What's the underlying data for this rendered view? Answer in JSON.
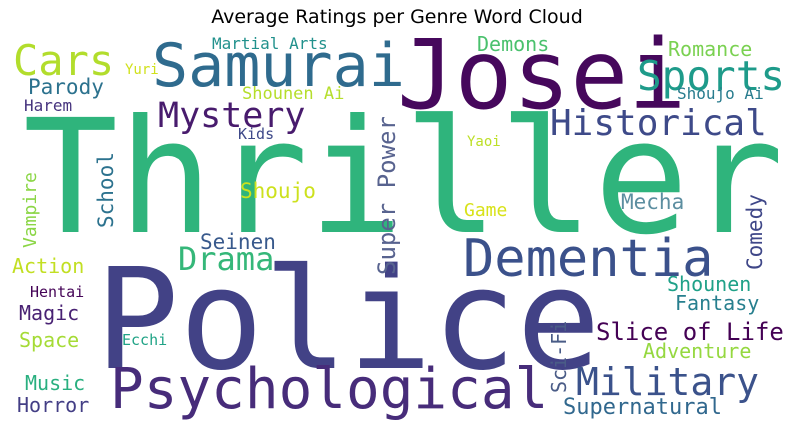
{
  "chart_data": {
    "type": "wordcloud",
    "title": "Average Ratings per Genre Word Cloud",
    "words": [
      {
        "text": "Thriller",
        "color": "#2fb47c"
      },
      {
        "text": "Police",
        "color": "#424286"
      },
      {
        "text": "Josei",
        "color": "#46085c"
      },
      {
        "text": "Samurai",
        "color": "#2f6b8e"
      },
      {
        "text": "Psychological",
        "color": "#472c7a"
      },
      {
        "text": "Dementia",
        "color": "#3b518b"
      },
      {
        "text": "Cars",
        "color": "#b2dd2c"
      },
      {
        "text": "Sports",
        "color": "#1e9b8a"
      },
      {
        "text": "Historical",
        "color": "#3e4a89"
      },
      {
        "text": "Mystery",
        "color": "#481b6d"
      },
      {
        "text": "Military",
        "color": "#3b528b"
      },
      {
        "text": "Drama",
        "color": "#35b779"
      },
      {
        "text": "Super Power",
        "color": "#58638f"
      },
      {
        "text": "Slice of Life",
        "color": "#440154"
      },
      {
        "text": "Supernatural",
        "color": "#31688e"
      },
      {
        "text": "Sci-Fi",
        "color": "#4a5c87"
      },
      {
        "text": "Comedy",
        "color": "#3f4788"
      },
      {
        "text": "Shoujo",
        "color": "#cde11d"
      },
      {
        "text": "School",
        "color": "#2c728e"
      },
      {
        "text": "Romance",
        "color": "#7ad151"
      },
      {
        "text": "Demons",
        "color": "#4ac16d"
      },
      {
        "text": "Mecha",
        "color": "#5c8ea0"
      },
      {
        "text": "Parody",
        "color": "#2c728e"
      },
      {
        "text": "Seinen",
        "color": "#38598c"
      },
      {
        "text": "Shounen",
        "color": "#1fa188"
      },
      {
        "text": "Fantasy",
        "color": "#277f8e"
      },
      {
        "text": "Adventure",
        "color": "#95d840"
      },
      {
        "text": "Action",
        "color": "#c2df23"
      },
      {
        "text": "Magic",
        "color": "#482173"
      },
      {
        "text": "Space",
        "color": "#a5db36"
      },
      {
        "text": "Music",
        "color": "#29af7f"
      },
      {
        "text": "Horror",
        "color": "#433e85"
      },
      {
        "text": "Vampire",
        "color": "#8bd646"
      },
      {
        "text": "Game",
        "color": "#d8e219"
      },
      {
        "text": "Shounen Ai",
        "color": "#b5de2b"
      },
      {
        "text": "Martial Arts",
        "color": "#21918c"
      },
      {
        "text": "Harem",
        "color": "#46337e"
      },
      {
        "text": "Shoujo Ai",
        "color": "#287c8e"
      },
      {
        "text": "Hentai",
        "color": "#450457"
      },
      {
        "text": "Kids",
        "color": "#3e4989"
      },
      {
        "text": "Ecchi",
        "color": "#20a386"
      },
      {
        "text": "Yuri",
        "color": "#d0e11c"
      },
      {
        "text": "Yaoi",
        "color": "#bddf26"
      }
    ]
  }
}
